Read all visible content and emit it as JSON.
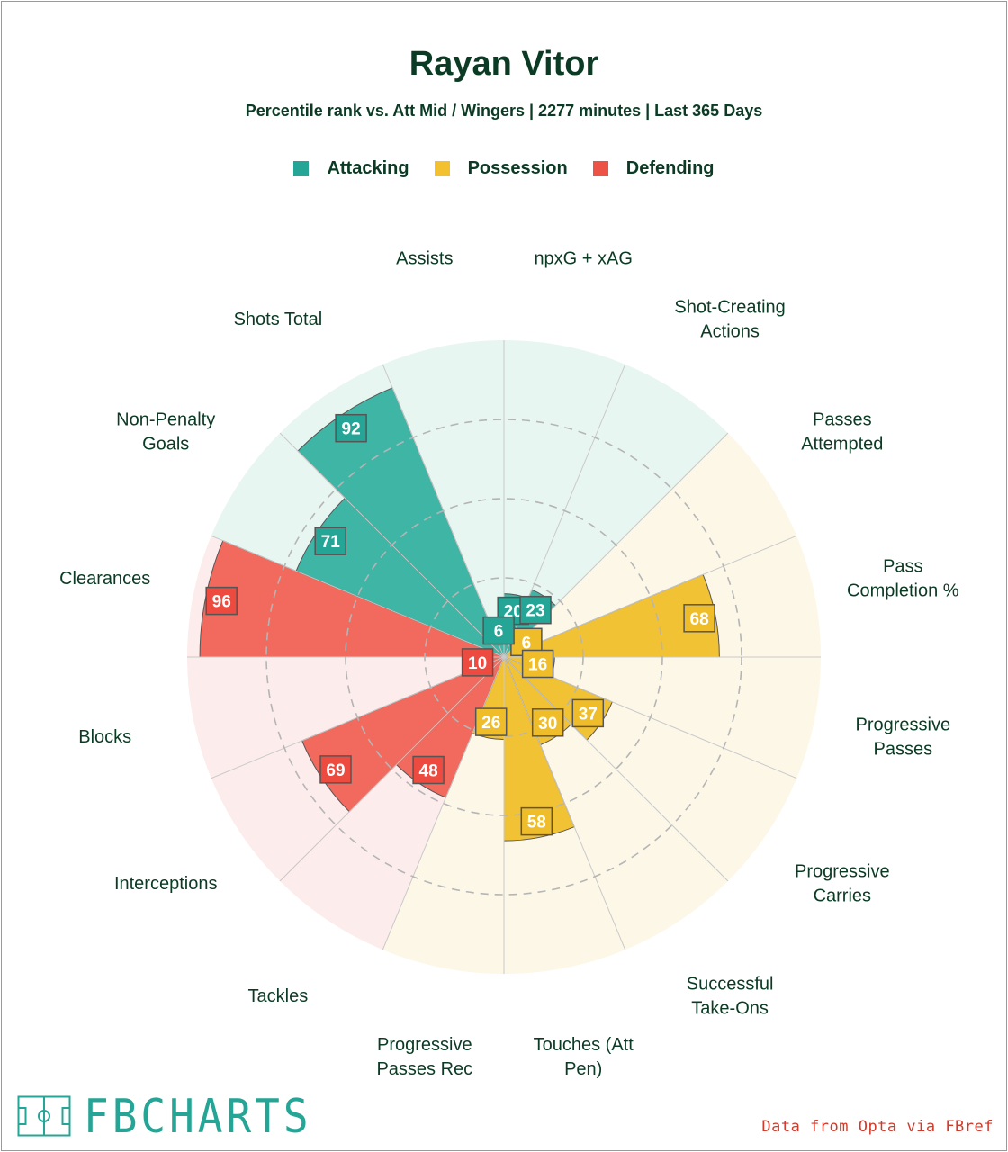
{
  "header": {
    "title": "Rayan Vitor",
    "subtitle": "Percentile rank vs. Att Mid / Wingers | 2277 minutes | Last 365 Days"
  },
  "legend": [
    {
      "label": "Attacking",
      "color": "#25a596"
    },
    {
      "label": "Possession",
      "color": "#f3c130"
    },
    {
      "label": "Defending",
      "color": "#ed5247"
    }
  ],
  "colors": {
    "Attacking": {
      "fill": "#3fb5a5",
      "bg": "#e8f6f2",
      "label_fill": "#25a596"
    },
    "Possession": {
      "fill": "#f2c235",
      "bg": "#fdf7e8",
      "label_fill": "#f0bd2a"
    },
    "Defending": {
      "fill": "#f26a5e",
      "bg": "#fdecec",
      "label_fill": "#ed4a40"
    }
  },
  "chart_data": {
    "type": "polar-bar",
    "title": "Rayan Vitor",
    "rlim": [
      0,
      100
    ],
    "grid_rings": [
      25,
      50,
      75
    ],
    "categories": [
      "npxG + xAG",
      "Shot-Creating Actions",
      "Passes Attempted",
      "Pass Completion %",
      "Progressive Passes",
      "Progressive Carries",
      "Successful Take-Ons",
      "Touches (Att Pen)",
      "Progressive Passes Rec",
      "Tackles",
      "Interceptions",
      "Blocks",
      "Clearances",
      "Non-Penalty Goals",
      "Shots Total",
      "Assists"
    ],
    "groups": [
      "Attacking",
      "Attacking",
      "Possession",
      "Possession",
      "Possession",
      "Possession",
      "Possession",
      "Possession",
      "Possession",
      "Defending",
      "Defending",
      "Defending",
      "Defending",
      "Attacking",
      "Attacking",
      "Attacking"
    ],
    "values": [
      20,
      23,
      6,
      68,
      16,
      37,
      30,
      58,
      26,
      48,
      69,
      10,
      96,
      71,
      92,
      6
    ],
    "axis_labels": [
      [
        "npxG + xAG"
      ],
      [
        "Shot-Creating",
        "Actions"
      ],
      [
        "Passes",
        "Attempted"
      ],
      [
        "Pass",
        "Completion %"
      ],
      [
        "Progressive",
        "Passes"
      ],
      [
        "Progressive",
        "Carries"
      ],
      [
        "Successful",
        "Take-Ons"
      ],
      [
        "Touches (Att",
        "Pen)"
      ],
      [
        "Progressive",
        "Passes Rec"
      ],
      [
        "Tackles"
      ],
      [
        "Interceptions"
      ],
      [
        "Blocks"
      ],
      [
        "Clearances"
      ],
      [
        "Non-Penalty",
        "Goals"
      ],
      [
        "Shots Total"
      ],
      [
        "Assists"
      ]
    ]
  },
  "footer": {
    "brand": "FBCHARTS",
    "source": "Data from Opta via FBref"
  }
}
